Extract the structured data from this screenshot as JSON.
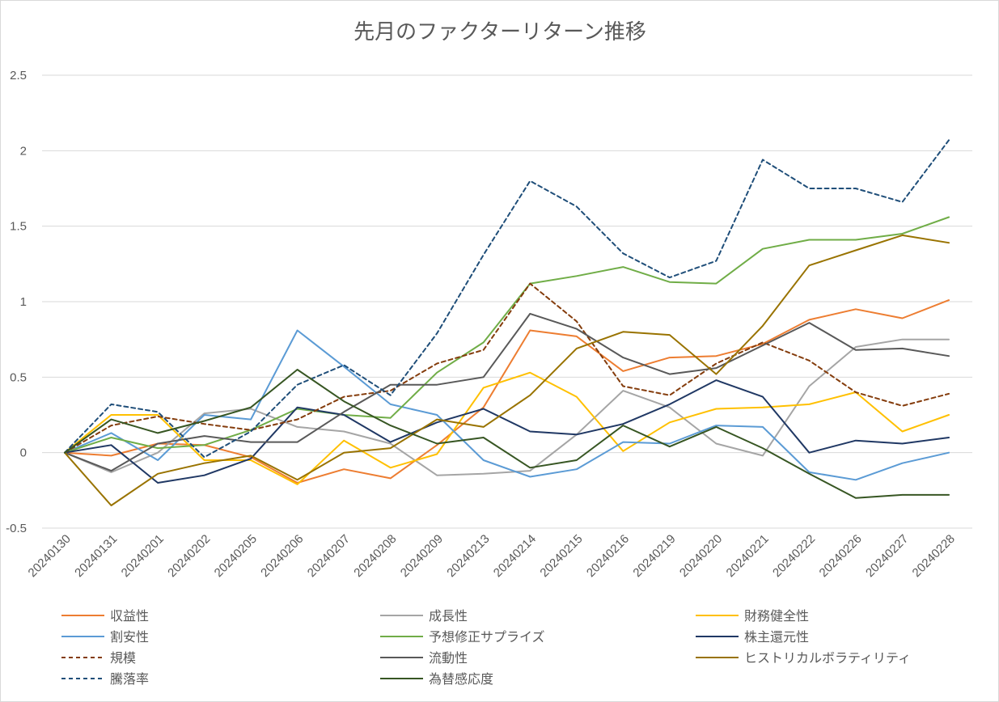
{
  "chart_data": {
    "type": "line",
    "title": "先月のファクターリターン推移",
    "xlabel": "",
    "ylabel": "",
    "ylim": [
      -0.5,
      2.5
    ],
    "yticks": [
      -0.5,
      0,
      0.5,
      1,
      1.5,
      2,
      2.5
    ],
    "ytick_labels": [
      "-0.5",
      "0",
      "0.5",
      "1",
      "1.5",
      "2",
      "2.5"
    ],
    "grid": true,
    "legend_position": "bottom",
    "categories": [
      "20240130",
      "20240131",
      "20240201",
      "20240202",
      "20240205",
      "20240206",
      "20240207",
      "20240208",
      "20240209",
      "20240213",
      "20240214",
      "20240215",
      "20240216",
      "20240219",
      "20240220",
      "20240221",
      "20240222",
      "20240226",
      "20240227",
      "20240228"
    ],
    "series": [
      {
        "name": "収益性",
        "color": "#ED7D31",
        "dash": "solid",
        "values": [
          0,
          -0.02,
          0.06,
          0.05,
          -0.03,
          -0.2,
          -0.11,
          -0.17,
          0.05,
          0.3,
          0.81,
          0.77,
          0.54,
          0.63,
          0.64,
          0.72,
          0.88,
          0.95,
          0.89,
          1.01
        ]
      },
      {
        "name": "成長性",
        "color": "#A5A5A5",
        "dash": "solid",
        "values": [
          0,
          -0.13,
          0.0,
          0.26,
          0.29,
          0.17,
          0.14,
          0.06,
          -0.15,
          -0.14,
          -0.12,
          0.12,
          0.41,
          0.3,
          0.06,
          -0.02,
          0.44,
          0.7,
          0.75,
          0.75
        ]
      },
      {
        "name": "財務健全性",
        "color": "#FFC000",
        "dash": "solid",
        "values": [
          0,
          0.25,
          0.25,
          -0.05,
          -0.05,
          -0.21,
          0.08,
          -0.1,
          -0.01,
          0.43,
          0.53,
          0.37,
          0.01,
          0.2,
          0.29,
          0.3,
          0.32,
          0.4,
          0.14,
          0.25
        ]
      },
      {
        "name": "割安性",
        "color": "#5B9BD5",
        "dash": "solid",
        "values": [
          0,
          0.13,
          -0.05,
          0.25,
          0.22,
          0.81,
          0.57,
          0.32,
          0.25,
          -0.05,
          -0.16,
          -0.11,
          0.07,
          0.06,
          0.18,
          0.17,
          -0.13,
          -0.18,
          -0.07,
          0.0
        ]
      },
      {
        "name": "予想修正サプライズ",
        "color": "#70AD47",
        "dash": "solid",
        "values": [
          0,
          0.1,
          0.03,
          0.05,
          0.15,
          0.29,
          0.25,
          0.23,
          0.53,
          0.73,
          1.12,
          1.17,
          1.23,
          1.13,
          1.12,
          1.35,
          1.41,
          1.41,
          1.45,
          1.56
        ]
      },
      {
        "name": "株主還元性",
        "color": "#203864",
        "dash": "solid",
        "values": [
          0,
          0.05,
          -0.2,
          -0.15,
          -0.04,
          0.3,
          0.25,
          0.07,
          0.2,
          0.29,
          0.14,
          0.12,
          0.19,
          0.32,
          0.48,
          0.37,
          0.0,
          0.08,
          0.06,
          0.1
        ]
      },
      {
        "name": "規模",
        "color": "#843C0C",
        "dash": "dashed",
        "values": [
          0,
          0.18,
          0.24,
          0.19,
          0.15,
          0.22,
          0.37,
          0.41,
          0.59,
          0.68,
          1.12,
          0.87,
          0.44,
          0.38,
          0.59,
          0.73,
          0.61,
          0.4,
          0.31,
          0.39
        ]
      },
      {
        "name": "流動性",
        "color": "#595959",
        "dash": "solid",
        "values": [
          0,
          -0.12,
          0.06,
          0.11,
          0.07,
          0.07,
          0.27,
          0.45,
          0.45,
          0.5,
          0.92,
          0.82,
          0.63,
          0.52,
          0.56,
          0.71,
          0.86,
          0.68,
          0.69,
          0.64
        ]
      },
      {
        "name": "ヒストリカルボラティリティ",
        "color": "#997300",
        "dash": "solid",
        "values": [
          0,
          -0.35,
          -0.14,
          -0.07,
          -0.02,
          -0.18,
          0.0,
          0.03,
          0.22,
          0.17,
          0.38,
          0.69,
          0.8,
          0.78,
          0.52,
          0.84,
          1.24,
          1.34,
          1.44,
          1.39
        ]
      },
      {
        "name": "騰落率",
        "color": "#1F4E79",
        "dash": "dashed",
        "values": [
          0,
          0.32,
          0.27,
          -0.03,
          0.14,
          0.45,
          0.58,
          0.38,
          0.79,
          1.31,
          1.8,
          1.63,
          1.32,
          1.16,
          1.27,
          1.94,
          1.75,
          1.75,
          1.66,
          2.07
        ]
      },
      {
        "name": "為替感応度",
        "color": "#375623",
        "dash": "solid",
        "values": [
          0,
          0.22,
          0.13,
          0.21,
          0.3,
          0.55,
          0.34,
          0.18,
          0.06,
          0.1,
          -0.1,
          -0.05,
          0.18,
          0.04,
          0.17,
          0.03,
          -0.14,
          -0.3,
          -0.28,
          -0.28
        ]
      }
    ]
  }
}
